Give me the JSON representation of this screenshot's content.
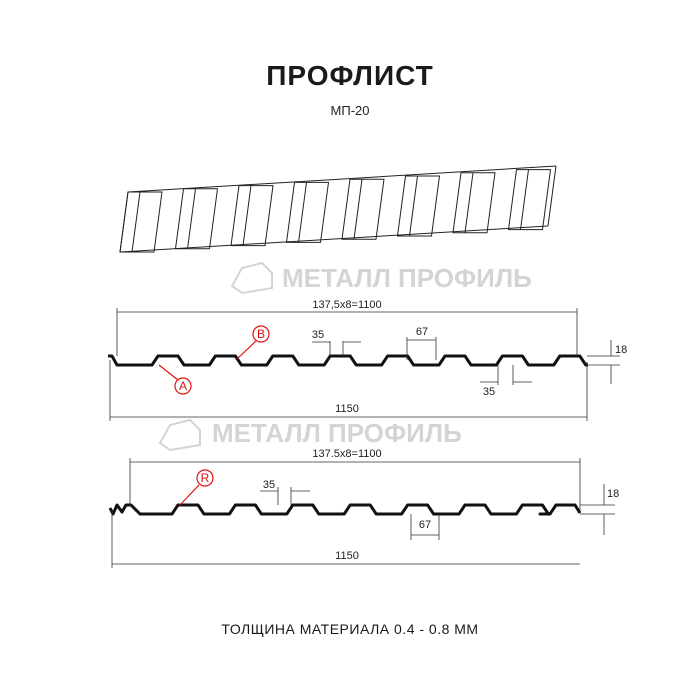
{
  "header": {
    "title": "ПРОФЛИСТ",
    "subtitle": "МП-20"
  },
  "watermark": {
    "text": "МЕТАЛЛ ПРОФИЛЬ"
  },
  "profile_top": {
    "span_label": "137,5x8=1100",
    "total_label": "1150",
    "rib_top_label": "35",
    "rib_gap_label": "67",
    "rib_bottom_label": "35",
    "height_label": "18",
    "callout_a": "A",
    "callout_b": "B"
  },
  "profile_bottom": {
    "span_label": "137.5x8=1100",
    "total_label": "1150",
    "rib_top_label": "35",
    "rib_gap_label": "67",
    "height_label": "18",
    "callout_r": "R"
  },
  "footer": {
    "thickness": "ТОЛЩИНА МАТЕРИАЛА 0.4 - 0.8 ММ"
  },
  "colors": {
    "callout": "#e01010",
    "profile": "#111111",
    "watermark": "#d4d4d4"
  }
}
